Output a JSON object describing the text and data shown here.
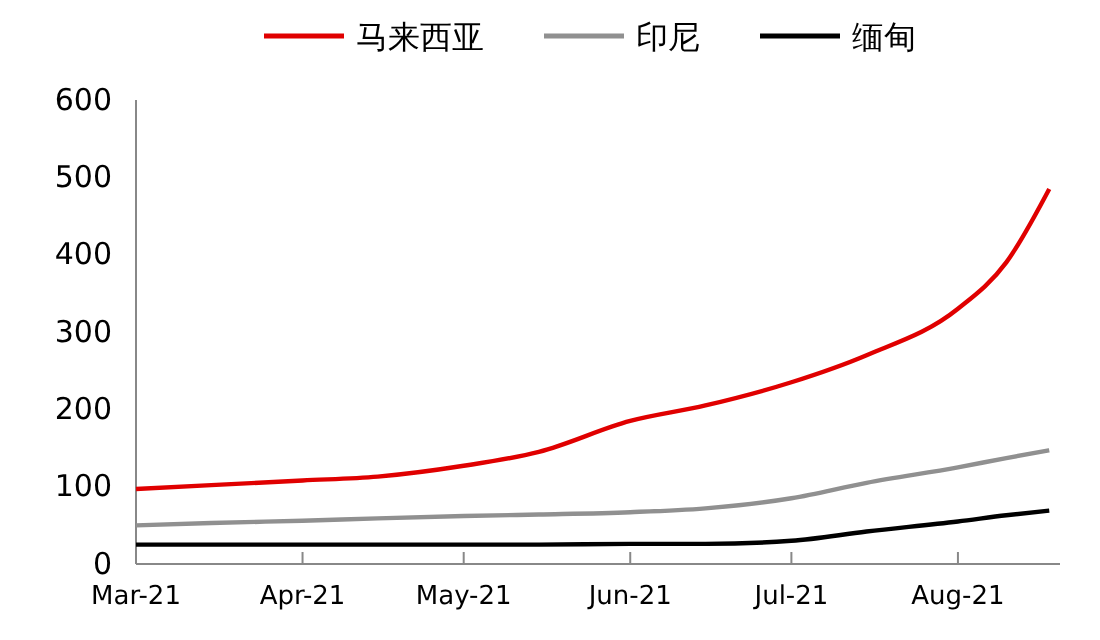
{
  "chart_data": {
    "type": "line",
    "legend": "top",
    "line_style": "solid",
    "marker": "none",
    "grid": false,
    "xlim": [
      "2021-03-01",
      "2021-08-20"
    ],
    "xticks": [
      {
        "value": "2021-03-01",
        "label": "Mar-21"
      },
      {
        "value": "2021-04-01",
        "label": "Apr-21"
      },
      {
        "value": "2021-05-01",
        "label": "May-21"
      },
      {
        "value": "2021-06-01",
        "label": "Jun-21"
      },
      {
        "value": "2021-07-01",
        "label": "Jul-21"
      },
      {
        "value": "2021-08-01",
        "label": "Aug-21"
      }
    ],
    "ylim": [
      0,
      600
    ],
    "yticks": [
      0,
      100,
      200,
      300,
      400,
      500,
      600
    ],
    "x": [
      "2021-03-01",
      "2021-03-15",
      "2021-04-01",
      "2021-04-15",
      "2021-05-01",
      "2021-05-15",
      "2021-06-01",
      "2021-06-15",
      "2021-07-01",
      "2021-07-15",
      "2021-08-01",
      "2021-08-10",
      "2021-08-18"
    ],
    "series": [
      {
        "name": "马来西亚",
        "color": "#e00000",
        "values": [
          97,
          102,
          108,
          113,
          127,
          145,
          185,
          205,
          235,
          270,
          330,
          390,
          485
        ]
      },
      {
        "name": "印尼",
        "color": "#909090",
        "values": [
          50,
          53,
          56,
          59,
          62,
          64,
          67,
          72,
          85,
          105,
          125,
          137,
          147
        ]
      },
      {
        "name": "缅甸",
        "color": "#000000",
        "values": [
          25,
          25,
          25,
          25,
          25,
          25,
          26,
          26,
          30,
          42,
          55,
          63,
          69
        ]
      }
    ]
  }
}
